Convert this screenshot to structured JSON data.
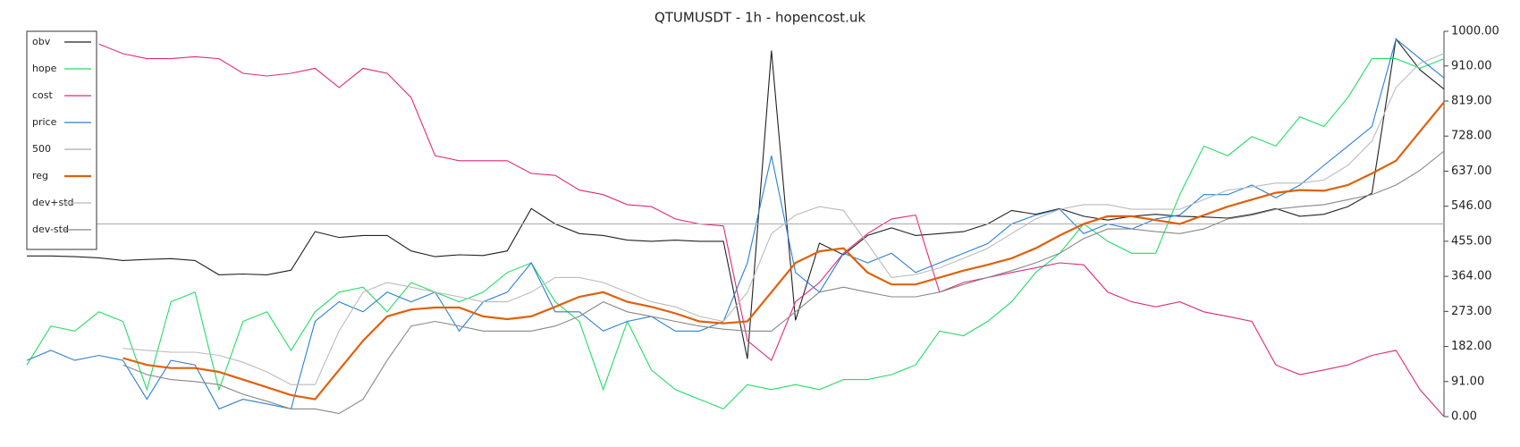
{
  "chart_data": {
    "type": "line",
    "title": "QTUMUSDT - 1h - hopencost.uk",
    "ylim": [
      0,
      1000
    ],
    "yticks": [
      {
        "value": 0,
        "label": "0.00"
      },
      {
        "value": 91,
        "label": "91.00"
      },
      {
        "value": 182,
        "label": "182.00"
      },
      {
        "value": 273,
        "label": "273.00"
      },
      {
        "value": 364,
        "label": "364.00"
      },
      {
        "value": 455,
        "label": "455.00"
      },
      {
        "value": 546,
        "label": "546.00"
      },
      {
        "value": 637,
        "label": "637.00"
      },
      {
        "value": 728,
        "label": "728.00"
      },
      {
        "value": 819,
        "label": "819.00"
      },
      {
        "value": 910,
        "label": "910.00"
      },
      {
        "value": 1000,
        "label": "1000.00"
      }
    ],
    "legend": "upper left",
    "series": [
      {
        "name": "obv",
        "color": "#222222",
        "values": [
          417,
          417,
          415,
          412,
          405,
          408,
          410,
          405,
          368,
          370,
          368,
          380,
          480,
          465,
          470,
          470,
          430,
          415,
          420,
          418,
          430,
          540,
          500,
          475,
          470,
          458,
          455,
          458,
          455,
          455,
          150,
          950,
          250,
          450,
          420,
          470,
          490,
          470,
          475,
          480,
          500,
          535,
          525,
          540,
          520,
          510,
          520,
          525,
          520,
          518,
          515,
          525,
          540,
          520,
          525,
          545,
          580,
          980,
          900,
          850
        ]
      },
      {
        "name": "hope",
        "color": "#22dd66",
        "values": [
          134,
          235,
          222,
          272,
          247,
          70,
          298,
          323,
          70,
          247,
          272,
          172,
          272,
          323,
          336,
          272,
          348,
          323,
          298,
          323,
          374,
          399,
          298,
          247,
          70,
          247,
          121,
          70,
          45,
          20,
          83,
          70,
          83,
          70,
          96,
          96,
          109,
          134,
          222,
          210,
          247,
          298,
          374,
          424,
          500,
          455,
          424,
          424,
          576,
          702,
          677,
          727,
          702,
          778,
          753,
          828,
          929,
          929,
          904,
          929
        ]
      },
      {
        "name": "cost",
        "color": "#e02a7c",
        "values": [
          null,
          null,
          null,
          967,
          942,
          929,
          929,
          934,
          929,
          891,
          884,
          891,
          904,
          854,
          904,
          891,
          828,
          677,
          664,
          664,
          664,
          631,
          626,
          588,
          576,
          550,
          545,
          513,
          500,
          495,
          197,
          146,
          298,
          348,
          424,
          475,
          513,
          523,
          323,
          348,
          361,
          374,
          386,
          399,
          394,
          323,
          298,
          285,
          298,
          272,
          260,
          247,
          134,
          109,
          121,
          134,
          159,
          172,
          70,
          0
        ]
      },
      {
        "name": "price",
        "color": "#2a7fd4",
        "values": [
          146,
          172,
          146,
          159,
          146,
          45,
          146,
          134,
          20,
          45,
          33,
          20,
          247,
          298,
          272,
          323,
          298,
          323,
          222,
          298,
          323,
          399,
          272,
          272,
          222,
          247,
          260,
          222,
          222,
          247,
          399,
          677,
          374,
          323,
          424,
          399,
          424,
          374,
          399,
          424,
          449,
          500,
          523,
          538,
          475,
          500,
          487,
          513,
          523,
          576,
          576,
          601,
          568,
          601,
          652,
          702,
          753,
          980,
          929,
          879
        ]
      },
      {
        "name": "500",
        "color": "#aaaaaa",
        "values": [
          500,
          500,
          500,
          500,
          500,
          500,
          500,
          500,
          500,
          500,
          500,
          500,
          500,
          500,
          500,
          500,
          500,
          500,
          500,
          500,
          500,
          500,
          500,
          500,
          500,
          500,
          500,
          500,
          500,
          500,
          500,
          500,
          500,
          500,
          500,
          500,
          500,
          500,
          500,
          500,
          500,
          500,
          500,
          500,
          500,
          500,
          500,
          500,
          500,
          500,
          500,
          500,
          500,
          500,
          500,
          500,
          500,
          500,
          500,
          500
        ]
      },
      {
        "name": "reg",
        "color": "#e0600a",
        "values": [
          null,
          null,
          null,
          null,
          152,
          134,
          126,
          126,
          116,
          96,
          76,
          56,
          45,
          121,
          197,
          260,
          278,
          283,
          283,
          260,
          253,
          260,
          285,
          311,
          323,
          298,
          285,
          268,
          247,
          242,
          247,
          323,
          399,
          429,
          437,
          374,
          343,
          343,
          361,
          379,
          394,
          411,
          437,
          470,
          500,
          520,
          520,
          510,
          500,
          523,
          545,
          563,
          581,
          588,
          586,
          601,
          631,
          664,
          740,
          816
        ]
      },
      {
        "name": "dev+std",
        "color": "#bbbbbb",
        "values": [
          null,
          null,
          null,
          null,
          177,
          172,
          167,
          167,
          159,
          141,
          116,
          83,
          83,
          222,
          323,
          348,
          336,
          323,
          311,
          298,
          298,
          323,
          361,
          361,
          348,
          323,
          298,
          285,
          260,
          247,
          323,
          475,
          523,
          545,
          535,
          449,
          361,
          369,
          386,
          411,
          437,
          475,
          513,
          538,
          550,
          550,
          538,
          538,
          538,
          563,
          588,
          596,
          606,
          606,
          614,
          652,
          715,
          854,
          917,
          942
        ]
      },
      {
        "name": "dev-std",
        "color": "#888888",
        "values": [
          null,
          null,
          null,
          null,
          134,
          109,
          96,
          91,
          83,
          58,
          40,
          20,
          20,
          8,
          45,
          146,
          235,
          247,
          235,
          222,
          222,
          222,
          235,
          260,
          298,
          272,
          260,
          247,
          235,
          227,
          222,
          222,
          272,
          323,
          336,
          323,
          311,
          311,
          323,
          343,
          361,
          379,
          399,
          424,
          462,
          487,
          487,
          480,
          475,
          487,
          513,
          523,
          538,
          545,
          550,
          563,
          576,
          601,
          639,
          689
        ]
      }
    ]
  }
}
